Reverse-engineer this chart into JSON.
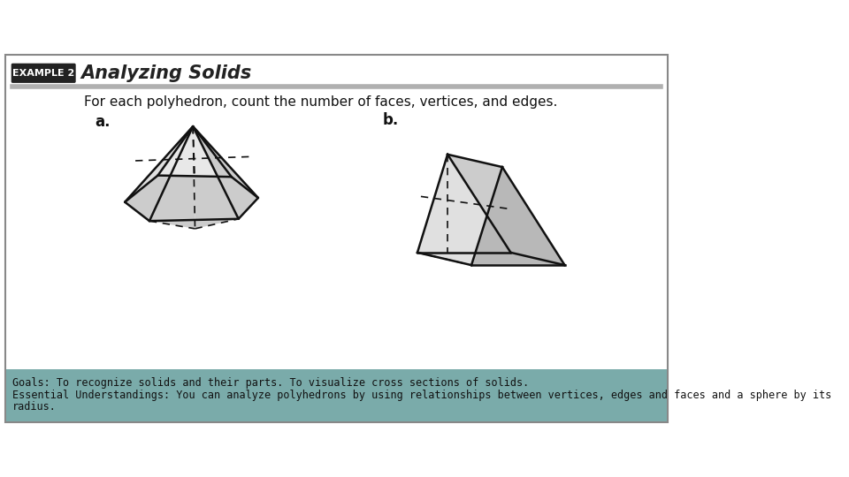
{
  "title": "Analyzing Solids",
  "example_label": "EXAMPLE 2",
  "instruction": "For each polyhedron, count the number of faces, vertices, and edges.",
  "label_a": "a.",
  "label_b": "b.",
  "footer_line1": "Goals: To recognize solids and their parts. To visualize cross sections of solids.",
  "footer_line2": "Essential Understandings: You can analyze polyhedrons by using relationships between vertices, edges and faces and a sphere by its",
  "footer_line3": "radius.",
  "bg_color": "#ffffff",
  "header_bar_color": "#b0b0b0",
  "footer_bg_color": "#7aabaa",
  "border_color": "#888888",
  "example_box_color": "#222222",
  "example_text_color": "#ffffff",
  "title_color": "#222222",
  "ec": "#111111",
  "fill_light": "#e0e0e0",
  "fill_mid": "#cccccc",
  "fill_dark": "#b8b8b8"
}
